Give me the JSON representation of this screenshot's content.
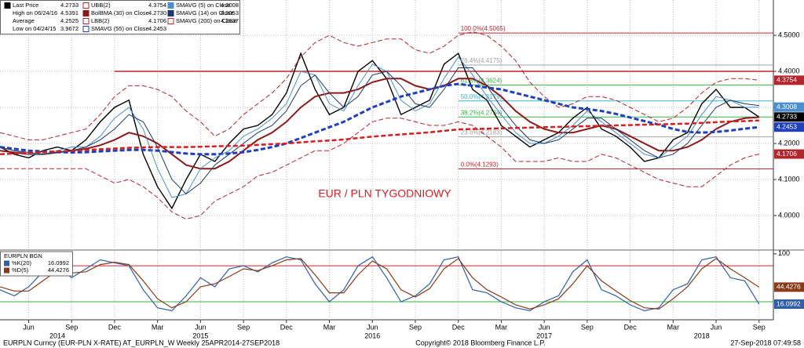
{
  "chart_data": [
    {
      "type": "line",
      "annotation": "EUR / PLN TYGODNIOWY",
      "x": [
        "2014-04",
        "2014-05",
        "2014-06",
        "2014-07",
        "2014-08",
        "2014-09",
        "2014-10",
        "2014-11",
        "2014-12",
        "2015-01",
        "2015-02",
        "2015-03",
        "2015-04",
        "2015-05",
        "2015-06",
        "2015-07",
        "2015-08",
        "2015-09",
        "2015-10",
        "2015-11",
        "2015-12",
        "2016-01",
        "2016-02",
        "2016-03",
        "2016-04",
        "2016-05",
        "2016-06",
        "2016-07",
        "2016-08",
        "2016-09",
        "2016-10",
        "2016-11",
        "2016-12",
        "2017-01",
        "2017-02",
        "2017-03",
        "2017-04",
        "2017-05",
        "2017-06",
        "2017-07",
        "2017-08",
        "2017-09",
        "2017-10",
        "2017-11",
        "2017-12",
        "2018-01",
        "2018-02",
        "2018-03",
        "2018-04",
        "2018-05",
        "2018-06",
        "2018-07",
        "2018-08",
        "2018-09"
      ],
      "xlim": [
        "2014-04",
        "2018-10"
      ],
      "ylim": [
        3.9065,
        4.598
      ],
      "yticks": [
        {
          "value": 4,
          "label": "4.0000"
        },
        {
          "value": 4.1,
          "label": "4.1000"
        },
        {
          "value": 4.2,
          "label": "4.2000"
        },
        {
          "value": 4.3,
          "label": "4.3000"
        },
        {
          "value": 4.4,
          "label": "4.4000"
        },
        {
          "value": 4.5,
          "label": "4.5000"
        }
      ],
      "grid": true,
      "stats": [
        {
          "name": "High on 06/24/16",
          "value": 4.5391
        },
        {
          "name": "Average",
          "value": 4.2525
        },
        {
          "name": "Low on 04/24/15",
          "value": 3.9672
        }
      ],
      "ref_line": {
        "value": 4.4,
        "from": "2014-12",
        "color": "#c0262d"
      },
      "fib_from": "2016-12",
      "fib_levels": [
        {
          "label": "100.0%(4.5065)",
          "value": 4.5065,
          "color": "#c0262d"
        },
        {
          "label": "76.4%(4.4175)",
          "value": 4.4175,
          "color": "#a0a0a0"
        },
        {
          "label": "61.8%(4.3624)",
          "value": 4.3624,
          "color": "#3cb043"
        },
        {
          "label": "50.0%(4.3179)",
          "value": 4.3179,
          "color": "#3ab7c8"
        },
        {
          "label": "38.2%(4.2734)",
          "value": 4.2734,
          "color": "#3cb043"
        },
        {
          "label": "23.6%(4.2183)",
          "value": 4.2183,
          "color": "#a0a0a0"
        },
        {
          "label": "0.0%(4.1293)",
          "value": 4.1293,
          "color": "#c0262d"
        }
      ],
      "series": [
        {
          "name": "Last Price",
          "color": "#000000",
          "width": 1.4,
          "dash": false,
          "axis_box": true,
          "last_label": "4.2733",
          "values": [
            4.19,
            4.17,
            4.16,
            4.18,
            4.19,
            4.18,
            4.21,
            4.26,
            4.3,
            4.32,
            4.17,
            4.08,
            4.02,
            4.1,
            4.17,
            4.15,
            4.2,
            4.24,
            4.25,
            4.28,
            4.34,
            4.45,
            4.35,
            4.28,
            4.3,
            4.4,
            4.43,
            4.38,
            4.28,
            4.3,
            4.32,
            4.42,
            4.45,
            4.35,
            4.32,
            4.25,
            4.22,
            4.19,
            4.21,
            4.23,
            4.27,
            4.3,
            4.24,
            4.22,
            4.19,
            4.15,
            4.16,
            4.21,
            4.23,
            4.31,
            4.35,
            4.3,
            4.3,
            4.2733
          ]
        },
        {
          "name": "UBB(2)",
          "color": "#b3262d",
          "width": 1,
          "dash": true,
          "axis_box": true,
          "last_label": "4.3754",
          "values": [
            4.23,
            4.22,
            4.21,
            4.21,
            4.22,
            4.23,
            4.24,
            4.28,
            4.33,
            4.36,
            4.36,
            4.35,
            4.33,
            4.29,
            4.26,
            4.22,
            4.24,
            4.28,
            4.31,
            4.34,
            4.38,
            4.44,
            4.48,
            4.5,
            4.48,
            4.47,
            4.48,
            4.49,
            4.49,
            4.46,
            4.45,
            4.47,
            4.5,
            4.51,
            4.5,
            4.47,
            4.43,
            4.37,
            4.33,
            4.3,
            4.31,
            4.33,
            4.33,
            4.32,
            4.3,
            4.28,
            4.26,
            4.27,
            4.3,
            4.34,
            4.37,
            4.38,
            4.38,
            4.3754
          ]
        },
        {
          "name": "BolBMA (30) on Close",
          "color": "#8b1a1a",
          "width": 2,
          "dash": false,
          "axis_box": false,
          "last_label": "4.2730",
          "values": [
            4.18,
            4.175,
            4.17,
            4.17,
            4.175,
            4.18,
            4.185,
            4.195,
            4.21,
            4.23,
            4.22,
            4.2,
            4.17,
            4.14,
            4.13,
            4.13,
            4.15,
            4.18,
            4.21,
            4.23,
            4.26,
            4.3,
            4.33,
            4.34,
            4.34,
            4.35,
            4.37,
            4.38,
            4.38,
            4.36,
            4.35,
            4.36,
            4.38,
            4.38,
            4.36,
            4.33,
            4.29,
            4.26,
            4.24,
            4.23,
            4.23,
            4.24,
            4.25,
            4.24,
            4.22,
            4.2,
            4.18,
            4.18,
            4.19,
            4.21,
            4.24,
            4.26,
            4.27,
            4.273
          ]
        },
        {
          "name": "LBB(2)",
          "color": "#b3262d",
          "width": 1,
          "dash": true,
          "axis_box": true,
          "last_label": "4.1706",
          "values": [
            4.13,
            4.13,
            4.13,
            4.13,
            4.13,
            4.13,
            4.13,
            4.11,
            4.09,
            4.1,
            4.08,
            4.05,
            4.01,
            3.99,
            4.0,
            4.04,
            4.06,
            4.08,
            4.11,
            4.12,
            4.14,
            4.16,
            4.18,
            4.18,
            4.2,
            4.23,
            4.26,
            4.27,
            4.27,
            4.26,
            4.25,
            4.25,
            4.26,
            4.25,
            4.22,
            4.19,
            4.15,
            4.15,
            4.15,
            4.16,
            4.15,
            4.15,
            4.17,
            4.16,
            4.14,
            4.12,
            4.1,
            4.09,
            4.08,
            4.08,
            4.11,
            4.14,
            4.16,
            4.1706
          ]
        },
        {
          "name": "SMAVG (55) on Close",
          "color": "#1f3fbf",
          "width": 3,
          "dash": true,
          "axis_box": true,
          "last_label": "4.2453",
          "values": [
            4.19,
            4.185,
            4.18,
            4.178,
            4.176,
            4.175,
            4.176,
            4.178,
            4.18,
            4.182,
            4.182,
            4.18,
            4.176,
            4.172,
            4.17,
            4.17,
            4.172,
            4.176,
            4.182,
            4.19,
            4.2,
            4.215,
            4.23,
            4.245,
            4.26,
            4.28,
            4.3,
            4.315,
            4.33,
            4.34,
            4.35,
            4.36,
            4.365,
            4.36,
            4.355,
            4.35,
            4.34,
            4.33,
            4.32,
            4.31,
            4.3,
            4.295,
            4.29,
            4.282,
            4.272,
            4.262,
            4.252,
            4.24,
            4.232,
            4.23,
            4.232,
            4.236,
            4.241,
            4.2453
          ]
        },
        {
          "name": "SMAVG (5) on Close",
          "color": "#4a8fd0",
          "width": 1,
          "dash": false,
          "axis_box": true,
          "last_label": "4.3008",
          "values": [
            4.19,
            4.18,
            4.17,
            4.17,
            4.18,
            4.19,
            4.19,
            4.22,
            4.27,
            4.3,
            4.24,
            4.13,
            4.05,
            4.06,
            4.13,
            4.16,
            4.18,
            4.22,
            4.24,
            4.27,
            4.31,
            4.4,
            4.39,
            4.31,
            4.29,
            4.36,
            4.42,
            4.4,
            4.32,
            4.29,
            4.31,
            4.38,
            4.44,
            4.39,
            4.33,
            4.28,
            4.23,
            4.2,
            4.2,
            4.22,
            4.25,
            4.29,
            4.26,
            4.23,
            4.2,
            4.17,
            4.16,
            4.19,
            4.22,
            4.28,
            4.33,
            4.32,
            4.3,
            4.3008
          ]
        },
        {
          "name": "SMAVG (14) on Close",
          "color": "#1a3a6a",
          "width": 1,
          "dash": false,
          "axis_box": false,
          "last_label": "4.3053",
          "values": [
            4.19,
            4.18,
            4.175,
            4.17,
            4.175,
            4.18,
            4.19,
            4.21,
            4.24,
            4.28,
            4.26,
            4.19,
            4.1,
            4.06,
            4.09,
            4.14,
            4.17,
            4.2,
            4.23,
            4.25,
            4.29,
            4.36,
            4.39,
            4.34,
            4.3,
            4.33,
            4.39,
            4.4,
            4.36,
            4.31,
            4.3,
            4.35,
            4.41,
            4.41,
            4.36,
            4.3,
            4.25,
            4.21,
            4.2,
            4.21,
            4.24,
            4.27,
            4.27,
            4.24,
            4.21,
            4.18,
            4.16,
            4.17,
            4.2,
            4.25,
            4.3,
            4.32,
            4.31,
            4.3053
          ]
        },
        {
          "name": "SMAVG (200) on Close",
          "color": "#d42020",
          "width": 2.5,
          "dash": true,
          "axis_box": false,
          "last_label": "4.2637",
          "values": [
            4.17,
            4.172,
            4.174,
            4.176,
            4.178,
            4.18,
            4.182,
            4.184,
            4.186,
            4.188,
            4.189,
            4.19,
            4.19,
            4.19,
            4.191,
            4.192,
            4.193,
            4.194,
            4.196,
            4.198,
            4.2,
            4.203,
            4.206,
            4.208,
            4.211,
            4.215,
            4.219,
            4.222,
            4.225,
            4.228,
            4.231,
            4.235,
            4.239,
            4.24,
            4.241,
            4.242,
            4.243,
            4.244,
            4.245,
            4.246,
            4.247,
            4.248,
            4.249,
            4.25,
            4.251,
            4.252,
            4.253,
            4.254,
            4.255,
            4.257,
            4.259,
            4.261,
            4.262,
            4.2637
          ]
        }
      ]
    },
    {
      "type": "line",
      "title": "EURPLN BGN",
      "x": [
        "2014-04",
        "2014-05",
        "2014-06",
        "2014-07",
        "2014-08",
        "2014-09",
        "2014-10",
        "2014-11",
        "2014-12",
        "2015-01",
        "2015-02",
        "2015-03",
        "2015-04",
        "2015-05",
        "2015-06",
        "2015-07",
        "2015-08",
        "2015-09",
        "2015-10",
        "2015-11",
        "2015-12",
        "2016-01",
        "2016-02",
        "2016-03",
        "2016-04",
        "2016-05",
        "2016-06",
        "2016-07",
        "2016-08",
        "2016-09",
        "2016-10",
        "2016-11",
        "2016-12",
        "2017-01",
        "2017-02",
        "2017-03",
        "2017-04",
        "2017-05",
        "2017-06",
        "2017-07",
        "2017-08",
        "2017-09",
        "2017-10",
        "2017-11",
        "2017-12",
        "2018-01",
        "2018-02",
        "2018-03",
        "2018-04",
        "2018-05",
        "2018-06",
        "2018-07",
        "2018-08",
        "2018-09"
      ],
      "xlim": [
        "2014-04",
        "2018-10"
      ],
      "xticks": [
        {
          "value": "2014-06",
          "label": "Jun"
        },
        {
          "value": "2014-09",
          "label": "Sep"
        },
        {
          "value": "2014-12",
          "label": "Dec"
        },
        {
          "value": "2015-03",
          "label": "Mar"
        },
        {
          "value": "2015-06",
          "label": "Jun"
        },
        {
          "value": "2015-09",
          "label": "Sep"
        },
        {
          "value": "2015-12",
          "label": "Dec"
        },
        {
          "value": "2016-03",
          "label": "Mar"
        },
        {
          "value": "2016-06",
          "label": "Jun"
        },
        {
          "value": "2016-09",
          "label": "Sep"
        },
        {
          "value": "2016-12",
          "label": "Dec"
        },
        {
          "value": "2017-03",
          "label": "Mar"
        },
        {
          "value": "2017-06",
          "label": "Jun"
        },
        {
          "value": "2017-09",
          "label": "Sep"
        },
        {
          "value": "2017-12",
          "label": "Dec"
        },
        {
          "value": "2018-03",
          "label": "Mar"
        },
        {
          "value": "2018-06",
          "label": "Jun"
        },
        {
          "value": "2018-09",
          "label": "Sep"
        }
      ],
      "year_labels": [
        {
          "value": "2014-08",
          "label": "2014"
        },
        {
          "value": "2015-06",
          "label": "2015"
        },
        {
          "value": "2016-06",
          "label": "2016"
        },
        {
          "value": "2017-06",
          "label": "2017"
        },
        {
          "value": "2018-05",
          "label": "2018"
        }
      ],
      "ylim": [
        -10,
        105
      ],
      "yticks": [
        100
      ],
      "hlines": [
        {
          "value": 80,
          "color": "#c0262d"
        },
        {
          "value": 20,
          "color": "#3cb043"
        }
      ],
      "series": [
        {
          "name": "%K(20)",
          "color": "#2f5fa8",
          "values": [
            40,
            30,
            45,
            70,
            80,
            60,
            75,
            90,
            85,
            80,
            40,
            10,
            5,
            30,
            60,
            45,
            75,
            80,
            70,
            85,
            95,
            90,
            50,
            20,
            40,
            80,
            95,
            60,
            20,
            30,
            50,
            90,
            95,
            40,
            35,
            20,
            10,
            5,
            20,
            30,
            70,
            90,
            40,
            30,
            15,
            5,
            10,
            40,
            50,
            90,
            95,
            60,
            55,
            16.0992
          ]
        },
        {
          "name": "%D(5)",
          "color": "#8b3a1a",
          "values": [
            45,
            38,
            38,
            55,
            72,
            68,
            70,
            82,
            86,
            82,
            55,
            25,
            10,
            20,
            45,
            50,
            62,
            75,
            72,
            80,
            90,
            92,
            65,
            35,
            35,
            65,
            88,
            75,
            40,
            28,
            42,
            75,
            92,
            60,
            40,
            28,
            15,
            8,
            15,
            25,
            50,
            80,
            55,
            38,
            22,
            10,
            8,
            25,
            45,
            75,
            92,
            75,
            60,
            44.4276
          ]
        }
      ]
    }
  ],
  "footer": {
    "left": "EURPLN Curncy (EUR-PLN X-RATE) AT_EURPLN_W  Weekly 25APR2014-27SEP2018",
    "center": "Copyright© 2018 Bloomberg Finance L.P.",
    "right": "27-Sep-2018 07:49:58"
  }
}
